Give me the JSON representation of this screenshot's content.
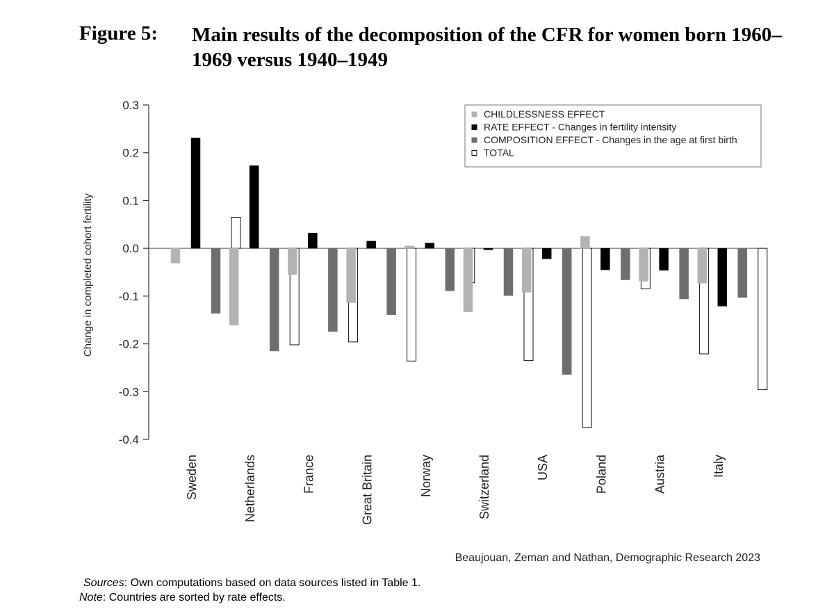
{
  "figure": {
    "label": "Figure 5:",
    "title": "Main results of the decomposition of the CFR for women born 1960–1969 versus 1940–1949"
  },
  "chart_data": {
    "type": "bar",
    "title": "",
    "xlabel": "",
    "ylabel": "Change in completed cohort fertility",
    "ylim": [
      -0.4,
      0.3
    ],
    "yticks": [
      "0.3",
      "0.2",
      "0.1",
      "0.0",
      "-0.1",
      "-0.2",
      "-0.3",
      "-0.4"
    ],
    "ytick_values": [
      0.3,
      0.2,
      0.1,
      0.0,
      -0.1,
      -0.2,
      -0.3,
      -0.4
    ],
    "grid": false,
    "legend_position": "top-right",
    "categories": [
      "Sweden",
      "Netherlands",
      "France",
      "Great Britain",
      "Norway",
      "Switzerland",
      "USA",
      "Poland",
      "Austria",
      "Italy"
    ],
    "series": [
      {
        "name": "CHILDLESSNESS EFFECT",
        "color": "#b3b3b3",
        "values": [
          -0.031,
          -0.161,
          -0.055,
          -0.114,
          0.005,
          -0.133,
          -0.092,
          0.025,
          -0.069,
          -0.073
        ]
      },
      {
        "name": "RATE EFFECT - Changes in fertility intensity",
        "color": "#000000",
        "values": [
          0.231,
          0.173,
          0.032,
          0.015,
          0.011,
          -0.003,
          -0.022,
          -0.045,
          -0.046,
          -0.121
        ]
      },
      {
        "name": "COMPOSITION EFFECT - Changes in the age at first birth",
        "color": "#6e6e6e",
        "values": [
          -0.136,
          -0.215,
          -0.174,
          -0.139,
          -0.089,
          -0.099,
          -0.264,
          -0.066,
          -0.106,
          -0.103
        ]
      },
      {
        "name": "TOTAL",
        "color": "#ffffff",
        "values": [
          0.065,
          -0.202,
          -0.196,
          -0.236,
          -0.072,
          -0.235,
          -0.375,
          -0.085,
          -0.221,
          -0.296
        ]
      }
    ]
  },
  "attribution": "Beaujouan, Zeman and Nathan, Demographic Research 2023",
  "sources": {
    "label": "Sources",
    "text": ": Own computations based on data sources listed in Table 1."
  },
  "note": {
    "label": "Note",
    "text": ": Countries are sorted by rate effects."
  }
}
